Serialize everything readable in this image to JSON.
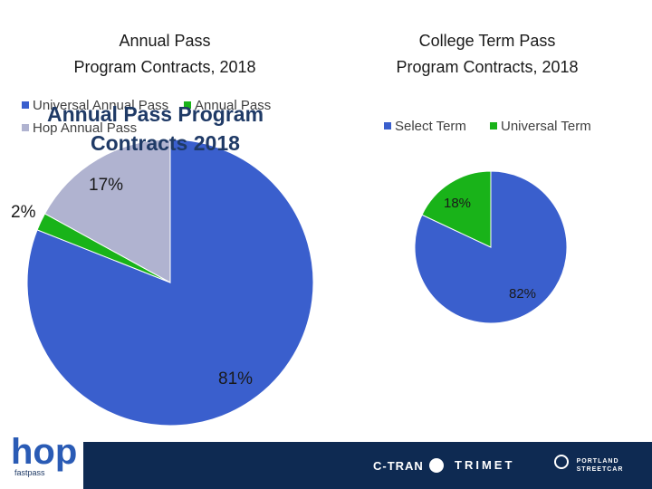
{
  "chart_data": [
    {
      "type": "pie",
      "title_lines": [
        "Annual Pass",
        "Program Contracts, 2018"
      ],
      "overlay_title_lines": [
        "Annual  Pass Program",
        "Contracts 2018"
      ],
      "legend_placement": "top",
      "categories": [
        "Universal Annual Pass",
        "Annual Pass",
        "Hop Annual Pass"
      ],
      "values": [
        81,
        2,
        17
      ],
      "labels": [
        "81%",
        "2%",
        "17%"
      ],
      "colors": [
        "#3a5fcd",
        "#19b319",
        "#b0b3d0"
      ]
    },
    {
      "type": "pie",
      "title_lines": [
        "College Term Pass",
        "Program Contracts, 2018"
      ],
      "legend_placement": "top",
      "categories": [
        "Select Term",
        "Universal Term"
      ],
      "values": [
        82,
        18
      ],
      "labels": [
        "82%",
        "18%"
      ],
      "colors": [
        "#3a5fcd",
        "#19b319"
      ]
    }
  ],
  "footer": {
    "logo_text": "hop",
    "logo_sub": "fastpass",
    "partners": [
      "C-TRAN",
      "TRIMET",
      "PORTLAND STREETCAR"
    ]
  }
}
